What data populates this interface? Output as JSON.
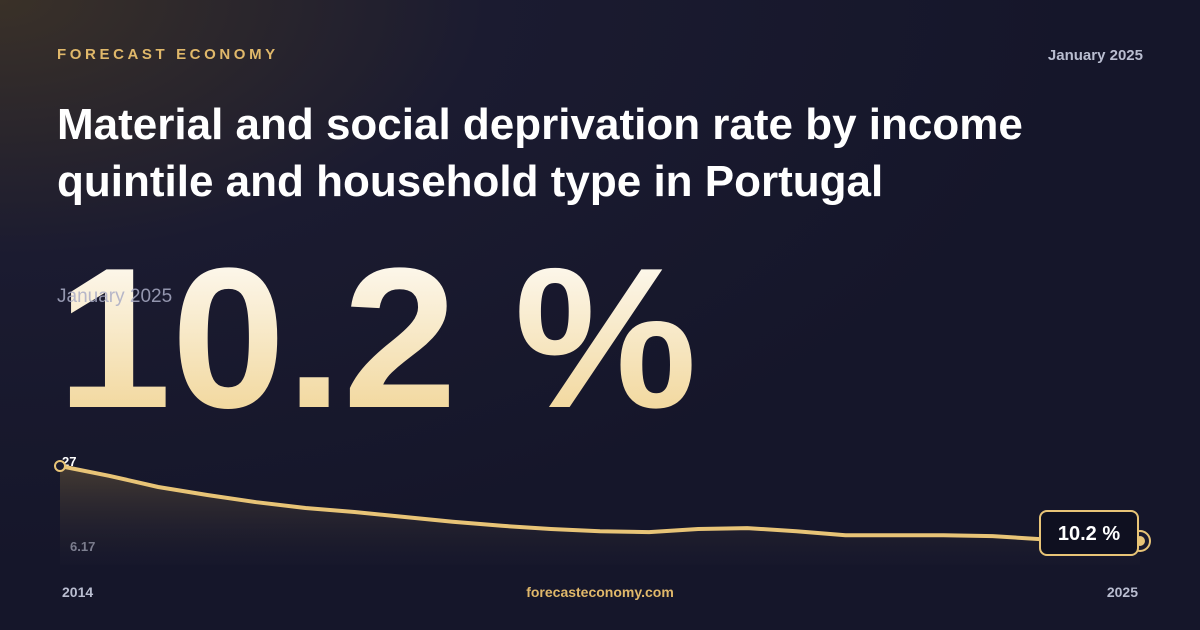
{
  "brand": "FORECAST ECONOMY",
  "date": "January 2025",
  "title": "Material and social deprivation rate by income quintile and household type in Portugal",
  "headline": "10.2 %",
  "footer": "forecasteconomy.com",
  "chart_data": {
    "type": "line",
    "categories": [
      "2014",
      null,
      null,
      null,
      null,
      null,
      null,
      null,
      null,
      null,
      null,
      null,
      null,
      null,
      null,
      null,
      null,
      null,
      null,
      null,
      null,
      null,
      "2025"
    ],
    "values": [
      27,
      24.8,
      22.3,
      20.5,
      18.9,
      17.6,
      16.7,
      15.6,
      14.5,
      13.6,
      12.9,
      12.4,
      12.2,
      12.9,
      13.1,
      12.4,
      11.5,
      11.5,
      11.5,
      11.3,
      10.6,
      10.4,
      10.2
    ],
    "value_labels": [
      null,
      null,
      null,
      null,
      null,
      null,
      null,
      null,
      null,
      null,
      null,
      null,
      null,
      null,
      null,
      null,
      null,
      null,
      null,
      null,
      null,
      null,
      "10.2 %"
    ],
    "color": "#e8c477",
    "ylim": [
      6.17,
      27
    ],
    "yticks": [
      6.17,
      27
    ]
  }
}
